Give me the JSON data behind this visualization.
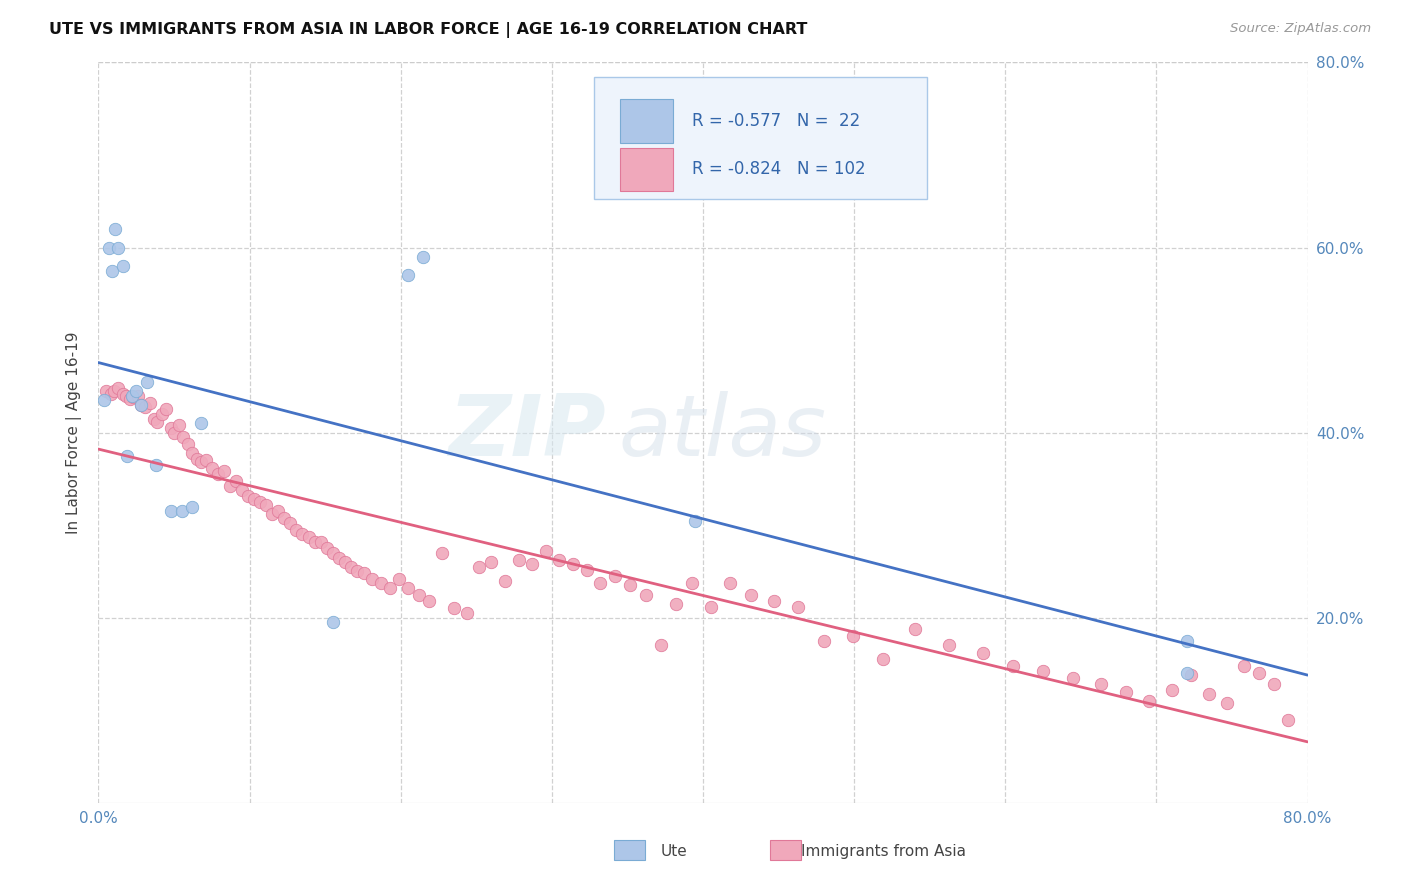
{
  "title": "UTE VS IMMIGRANTS FROM ASIA IN LABOR FORCE | AGE 16-19 CORRELATION CHART",
  "source": "Source: ZipAtlas.com",
  "ylabel_left": "In Labor Force | Age 16-19",
  "xlim": [
    0.0,
    0.8
  ],
  "ylim": [
    0.0,
    0.8
  ],
  "xtick_vals": [
    0.0,
    0.8
  ],
  "xtick_labels": [
    "0.0%",
    "80.0%"
  ],
  "right_ytick_vals": [
    0.2,
    0.4,
    0.6,
    0.8
  ],
  "right_ytick_labels": [
    "20.0%",
    "40.0%",
    "60.0%",
    "80.0%"
  ],
  "ute_color": "#adc6e8",
  "ute_edge_color": "#7aabd4",
  "immigrants_color": "#f0a8bb",
  "immigrants_edge_color": "#e07898",
  "ute_line_color": "#4472C4",
  "immigrants_line_color": "#e06080",
  "ute_R": -0.577,
  "ute_N": 22,
  "immigrants_R": -0.824,
  "immigrants_N": 102,
  "watermark_zip": "ZIP",
  "watermark_atlas": "atlas",
  "background_color": "#ffffff",
  "grid_color": "#cccccc",
  "marker_size": 80,
  "legend_face_color": "#eef4fc",
  "legend_edge_color": "#aac8e8",
  "ute_x": [
    0.004,
    0.007,
    0.009,
    0.011,
    0.013,
    0.016,
    0.019,
    0.022,
    0.025,
    0.028,
    0.032,
    0.038,
    0.048,
    0.055,
    0.062,
    0.068,
    0.155,
    0.205,
    0.215,
    0.395,
    0.72,
    0.72
  ],
  "ute_y": [
    0.435,
    0.6,
    0.575,
    0.62,
    0.6,
    0.58,
    0.375,
    0.44,
    0.445,
    0.43,
    0.455,
    0.365,
    0.315,
    0.315,
    0.32,
    0.41,
    0.195,
    0.57,
    0.59,
    0.305,
    0.14,
    0.175
  ],
  "immigrants_x": [
    0.005,
    0.008,
    0.01,
    0.013,
    0.016,
    0.018,
    0.021,
    0.023,
    0.026,
    0.028,
    0.031,
    0.034,
    0.037,
    0.039,
    0.042,
    0.045,
    0.048,
    0.05,
    0.053,
    0.056,
    0.059,
    0.062,
    0.065,
    0.068,
    0.071,
    0.075,
    0.079,
    0.083,
    0.087,
    0.091,
    0.095,
    0.099,
    0.103,
    0.107,
    0.111,
    0.115,
    0.119,
    0.123,
    0.127,
    0.131,
    0.135,
    0.139,
    0.143,
    0.147,
    0.151,
    0.155,
    0.159,
    0.163,
    0.167,
    0.171,
    0.176,
    0.181,
    0.187,
    0.193,
    0.199,
    0.205,
    0.212,
    0.219,
    0.227,
    0.235,
    0.244,
    0.252,
    0.26,
    0.269,
    0.278,
    0.287,
    0.296,
    0.305,
    0.314,
    0.323,
    0.332,
    0.342,
    0.352,
    0.362,
    0.372,
    0.382,
    0.393,
    0.405,
    0.418,
    0.432,
    0.447,
    0.463,
    0.48,
    0.499,
    0.519,
    0.54,
    0.563,
    0.585,
    0.605,
    0.625,
    0.645,
    0.663,
    0.68,
    0.695,
    0.71,
    0.723,
    0.735,
    0.747,
    0.758,
    0.768,
    0.778,
    0.787
  ],
  "immigrants_y": [
    0.445,
    0.442,
    0.445,
    0.448,
    0.442,
    0.44,
    0.436,
    0.438,
    0.44,
    0.43,
    0.428,
    0.432,
    0.415,
    0.412,
    0.42,
    0.425,
    0.405,
    0.4,
    0.408,
    0.395,
    0.388,
    0.378,
    0.372,
    0.368,
    0.37,
    0.362,
    0.355,
    0.358,
    0.342,
    0.348,
    0.338,
    0.332,
    0.328,
    0.325,
    0.322,
    0.312,
    0.315,
    0.308,
    0.302,
    0.295,
    0.29,
    0.287,
    0.282,
    0.282,
    0.275,
    0.27,
    0.265,
    0.26,
    0.255,
    0.25,
    0.248,
    0.242,
    0.238,
    0.232,
    0.242,
    0.232,
    0.225,
    0.218,
    0.27,
    0.21,
    0.205,
    0.255,
    0.26,
    0.24,
    0.262,
    0.258,
    0.272,
    0.262,
    0.258,
    0.252,
    0.238,
    0.245,
    0.235,
    0.225,
    0.17,
    0.215,
    0.238,
    0.212,
    0.238,
    0.225,
    0.218,
    0.212,
    0.175,
    0.18,
    0.155,
    0.188,
    0.17,
    0.162,
    0.148,
    0.142,
    0.135,
    0.128,
    0.12,
    0.11,
    0.122,
    0.138,
    0.118,
    0.108,
    0.148,
    0.14,
    0.128,
    0.09
  ]
}
